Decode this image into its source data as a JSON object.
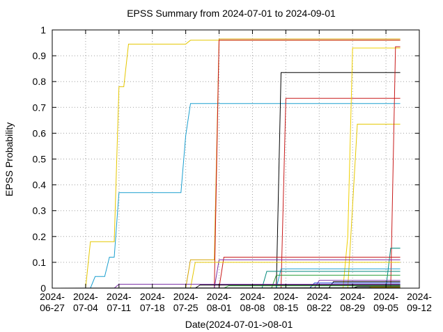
{
  "chart_data": {
    "type": "line",
    "title": "EPSS Summary from 2024-07-01 to 2024-09-01",
    "xlabel": "Date(2024-07-01->08-01",
    "ylabel": "EPSS Probability",
    "x_type": "date",
    "xlim": [
      "2024-06-27",
      "2024-09-12"
    ],
    "ylim": [
      0,
      1
    ],
    "x_ticks": [
      {
        "date": "2024-06-27",
        "line1": "2024-",
        "line2": "06-27"
      },
      {
        "date": "2024-07-04",
        "line1": "2024-",
        "line2": "07-04"
      },
      {
        "date": "2024-07-11",
        "line1": "2024-",
        "line2": "07-11"
      },
      {
        "date": "2024-07-18",
        "line1": "2024-",
        "line2": "07-18"
      },
      {
        "date": "2024-07-25",
        "line1": "2024-",
        "line2": "07-25"
      },
      {
        "date": "2024-08-01",
        "line1": "2024-",
        "line2": "08-01"
      },
      {
        "date": "2024-08-08",
        "line1": "2024-",
        "line2": "08-08"
      },
      {
        "date": "2024-08-15",
        "line1": "2024-",
        "line2": "08-15"
      },
      {
        "date": "2024-08-22",
        "line1": "2024-",
        "line2": "08-22"
      },
      {
        "date": "2024-08-29",
        "line1": "2024-",
        "line2": "08-29"
      },
      {
        "date": "2024-09-05",
        "line1": "2024-",
        "line2": "09-05"
      },
      {
        "date": "2024-09-12",
        "line1": "2024-",
        "line2": "09-12"
      }
    ],
    "y_ticks": [
      {
        "value": 0,
        "label": "0"
      },
      {
        "value": 0.1,
        "label": "0.1"
      },
      {
        "value": 0.2,
        "label": "0.2"
      },
      {
        "value": 0.3,
        "label": "0.3"
      },
      {
        "value": 0.4,
        "label": "0.4"
      },
      {
        "value": 0.5,
        "label": "0.5"
      },
      {
        "value": 0.6,
        "label": "0.6"
      },
      {
        "value": 0.7,
        "label": "0.7"
      },
      {
        "value": 0.8,
        "label": "0.8"
      },
      {
        "value": 0.9,
        "label": "0.9"
      },
      {
        "value": 1,
        "label": "1"
      }
    ],
    "grid": true,
    "grid_style": "dotted",
    "legend": "none",
    "series": [
      {
        "color": "#e5c700",
        "points": [
          [
            "2024-07-04",
            0.0
          ],
          [
            "2024-07-05",
            0.18
          ],
          [
            "2024-07-10",
            0.18
          ],
          [
            "2024-07-11",
            0.78
          ],
          [
            "2024-07-12",
            0.78
          ],
          [
            "2024-07-13",
            0.945
          ],
          [
            "2024-07-25",
            0.945
          ],
          [
            "2024-07-26",
            0.96
          ],
          [
            "2024-09-08",
            0.96
          ]
        ]
      },
      {
        "color": "#1a9fcf",
        "points": [
          [
            "2024-07-05",
            0.0
          ],
          [
            "2024-07-06",
            0.045
          ],
          [
            "2024-07-08",
            0.045
          ],
          [
            "2024-07-09",
            0.12
          ],
          [
            "2024-07-10",
            0.12
          ],
          [
            "2024-07-11",
            0.37
          ],
          [
            "2024-07-24",
            0.37
          ],
          [
            "2024-07-25",
            0.59
          ],
          [
            "2024-07-26",
            0.715
          ],
          [
            "2024-09-08",
            0.715
          ]
        ]
      },
      {
        "color": "#d4a300",
        "points": [
          [
            "2024-07-25",
            0.0
          ],
          [
            "2024-07-26",
            0.11
          ],
          [
            "2024-07-31",
            0.11
          ],
          [
            "2024-08-01",
            0.965
          ],
          [
            "2024-09-08",
            0.965
          ]
        ]
      },
      {
        "color": "#c81a1a",
        "points": [
          [
            "2024-07-31",
            0.0
          ],
          [
            "2024-08-01",
            0.96
          ],
          [
            "2024-09-08",
            0.96
          ]
        ]
      },
      {
        "color": "#000000",
        "points": [
          [
            "2024-08-13",
            0.0
          ],
          [
            "2024-08-14",
            0.835
          ],
          [
            "2024-09-08",
            0.835
          ]
        ]
      },
      {
        "color": "#c81a1a",
        "points": [
          [
            "2024-08-14",
            0.0
          ],
          [
            "2024-08-15",
            0.735
          ],
          [
            "2024-09-08",
            0.735
          ]
        ]
      },
      {
        "color": "#f0d000",
        "points": [
          [
            "2024-08-27",
            0.0
          ],
          [
            "2024-08-28",
            0.2
          ],
          [
            "2024-08-29",
            0.93
          ],
          [
            "2024-09-08",
            0.93
          ]
        ]
      },
      {
        "color": "#e5c700",
        "points": [
          [
            "2024-08-28",
            0.0
          ],
          [
            "2024-08-30",
            0.635
          ],
          [
            "2024-09-08",
            0.635
          ]
        ]
      },
      {
        "color": "#c81a1a",
        "points": [
          [
            "2024-09-06",
            0.0
          ],
          [
            "2024-09-07",
            0.935
          ],
          [
            "2024-09-08",
            0.935
          ]
        ]
      },
      {
        "color": "#00897b",
        "points": [
          [
            "2024-09-05",
            0.0
          ],
          [
            "2024-09-06",
            0.155
          ],
          [
            "2024-09-08",
            0.155
          ]
        ]
      },
      {
        "color": "#c81a1a",
        "points": [
          [
            "2024-08-01",
            0.0
          ],
          [
            "2024-08-02",
            0.12
          ],
          [
            "2024-09-08",
            0.12
          ]
        ]
      },
      {
        "color": "#7a2ea6",
        "points": [
          [
            "2024-07-31",
            0.0
          ],
          [
            "2024-08-01",
            0.11
          ],
          [
            "2024-09-08",
            0.11
          ]
        ]
      },
      {
        "color": "#e5c700",
        "points": [
          [
            "2024-07-26",
            0.0
          ],
          [
            "2024-07-27",
            0.1
          ],
          [
            "2024-09-08",
            0.1
          ]
        ]
      },
      {
        "color": "#1a9fcf",
        "points": [
          [
            "2024-08-13",
            0.0
          ],
          [
            "2024-08-14",
            0.075
          ],
          [
            "2024-09-08",
            0.075
          ]
        ]
      },
      {
        "color": "#00897b",
        "points": [
          [
            "2024-08-10",
            0.0
          ],
          [
            "2024-08-11",
            0.065
          ],
          [
            "2024-09-08",
            0.065
          ]
        ]
      },
      {
        "color": "#2e9e3a",
        "points": [
          [
            "2024-08-12",
            0.0
          ],
          [
            "2024-08-13",
            0.05
          ],
          [
            "2024-09-08",
            0.05
          ]
        ]
      },
      {
        "color": "#7a2ea6",
        "points": [
          [
            "2024-08-21",
            0.0
          ],
          [
            "2024-08-22",
            0.03
          ],
          [
            "2024-09-08",
            0.03
          ]
        ]
      },
      {
        "color": "#000000",
        "points": [
          [
            "2024-08-24",
            0.0
          ],
          [
            "2024-08-25",
            0.025
          ],
          [
            "2024-09-08",
            0.025
          ]
        ]
      },
      {
        "color": "#1a3fcf",
        "points": [
          [
            "2024-08-20",
            0.0
          ],
          [
            "2024-08-21",
            0.02
          ],
          [
            "2024-09-08",
            0.02
          ]
        ]
      },
      {
        "color": "#7a2ea6",
        "points": [
          [
            "2024-07-10",
            0.0
          ],
          [
            "2024-07-11",
            0.015
          ],
          [
            "2024-09-08",
            0.015
          ]
        ]
      },
      {
        "color": "#000000",
        "points": [
          [
            "2024-07-27",
            0.0
          ],
          [
            "2024-07-28",
            0.012
          ],
          [
            "2024-09-08",
            0.012
          ]
        ]
      },
      {
        "color": "#2e9e3a",
        "points": [
          [
            "2024-08-02",
            0.0
          ],
          [
            "2024-08-03",
            0.009
          ],
          [
            "2024-09-08",
            0.009
          ]
        ]
      },
      {
        "color": "#000000",
        "points": [
          [
            "2024-08-29",
            0.0
          ],
          [
            "2024-08-30",
            0.006
          ],
          [
            "2024-09-08",
            0.006
          ]
        ]
      },
      {
        "color": "#e5c700",
        "points": [
          [
            "2024-09-01",
            0.0
          ],
          [
            "2024-09-02",
            0.004
          ],
          [
            "2024-09-08",
            0.004
          ]
        ]
      },
      {
        "color": "#000000",
        "points": [
          [
            "2024-06-28",
            0.0
          ],
          [
            "2024-09-08",
            0.002
          ]
        ]
      }
    ]
  }
}
